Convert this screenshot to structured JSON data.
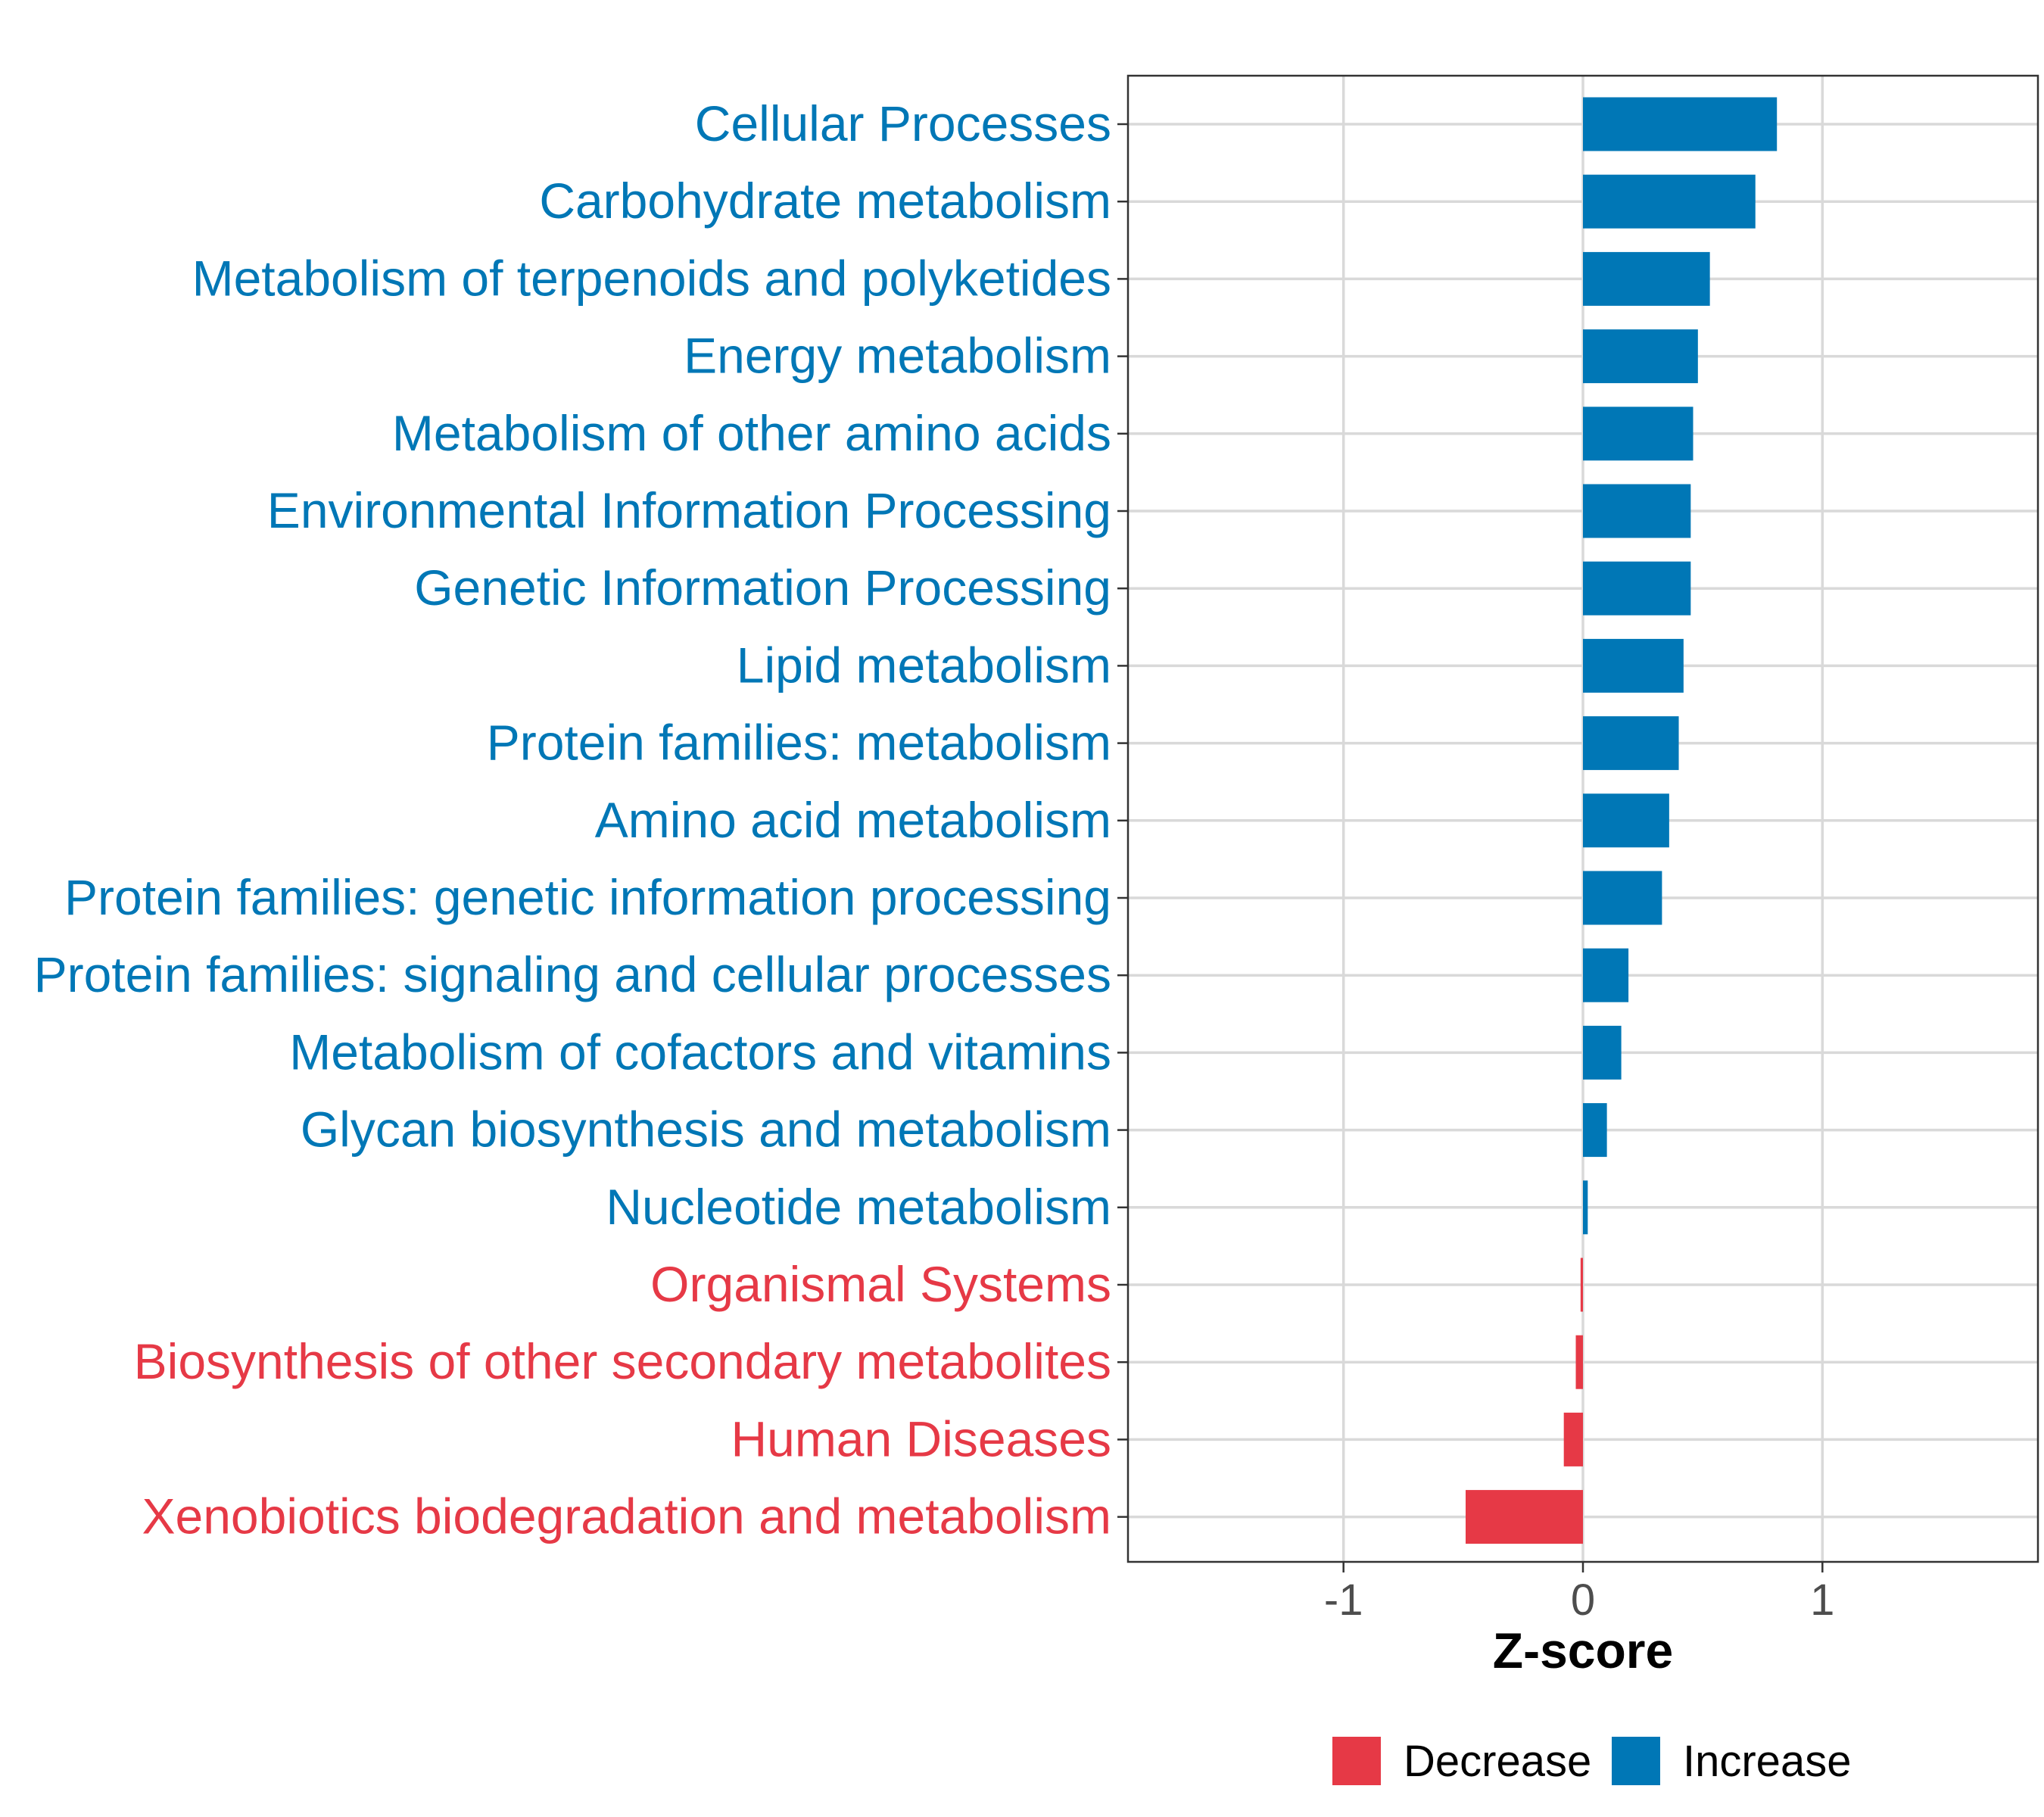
{
  "chart_data": {
    "type": "bar",
    "orientation": "horizontal",
    "title": "",
    "xlabel": "Z-score",
    "ylabel": "",
    "xlim": [
      -1.9,
      1.9
    ],
    "xticks": [
      -1,
      0,
      1
    ],
    "xtick_labels": [
      "-1",
      "0",
      "1"
    ],
    "grid": true,
    "legend_position": "bottom",
    "categories": [
      "Cellular Processes",
      "Carbohydrate metabolism",
      "Metabolism of terpenoids and polyketides",
      "Energy metabolism",
      "Metabolism of other amino acids",
      "Environmental Information Processing",
      "Genetic Information Processing",
      "Lipid metabolism",
      "Protein families: metabolism",
      "Amino acid metabolism",
      "Protein families: genetic information processing",
      "Protein families: signaling and cellular processes",
      "Metabolism of cofactors and vitamins",
      "Glycan biosynthesis and metabolism",
      "Nucleotide metabolism",
      "Organismal Systems",
      "Biosynthesis of other secondary metabolites",
      "Human Diseases",
      "Xenobiotics biodegradation and metabolism"
    ],
    "values": [
      0.81,
      0.72,
      0.53,
      0.48,
      0.46,
      0.45,
      0.45,
      0.42,
      0.4,
      0.36,
      0.33,
      0.19,
      0.16,
      0.1,
      0.02,
      -0.01,
      -0.03,
      -0.08,
      -0.49
    ],
    "groups": [
      "Increase",
      "Increase",
      "Increase",
      "Increase",
      "Increase",
      "Increase",
      "Increase",
      "Increase",
      "Increase",
      "Increase",
      "Increase",
      "Increase",
      "Increase",
      "Increase",
      "Increase",
      "Decrease",
      "Decrease",
      "Decrease",
      "Decrease"
    ],
    "legend": [
      {
        "name": "Decrease",
        "color": "#e63946"
      },
      {
        "name": "Increase",
        "color": "#0077b6"
      }
    ]
  }
}
